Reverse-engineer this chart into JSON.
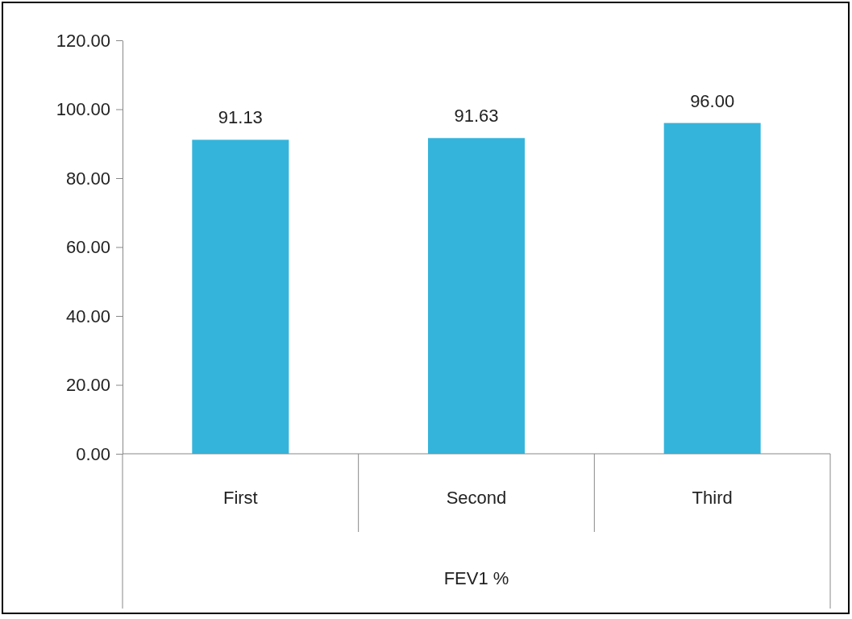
{
  "chart_data": {
    "type": "bar",
    "xlabel": "FEV1 %",
    "categories": [
      "First",
      "Second",
      "Third"
    ],
    "values": [
      91.13,
      91.63,
      96.0
    ],
    "value_labels": [
      "91.13",
      "91.63",
      "96.00"
    ],
    "color": "#35b4db",
    "ylim": [
      0,
      120
    ],
    "yticks": [
      {
        "value": 0,
        "label": "0.00"
      },
      {
        "value": 20,
        "label": "20.00"
      },
      {
        "value": 40,
        "label": "40.00"
      },
      {
        "value": 60,
        "label": "60.00"
      },
      {
        "value": 80,
        "label": "80.00"
      },
      {
        "value": 100,
        "label": "100.00"
      },
      {
        "value": 120,
        "label": "120.00"
      }
    ]
  }
}
